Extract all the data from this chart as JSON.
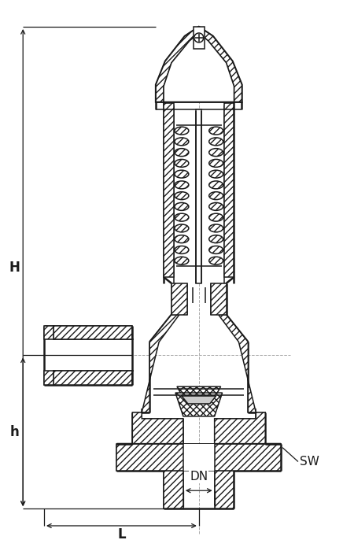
{
  "bg_color": "#ffffff",
  "line_color": "#1a1a1a",
  "dim_color": "#1a1a1a",
  "labels": {
    "H": "H",
    "h": "h",
    "L": "L",
    "DN": "DN",
    "SW": "SW"
  },
  "font_size_labels": 12,
  "lw": 1.1,
  "tlw": 1.8
}
